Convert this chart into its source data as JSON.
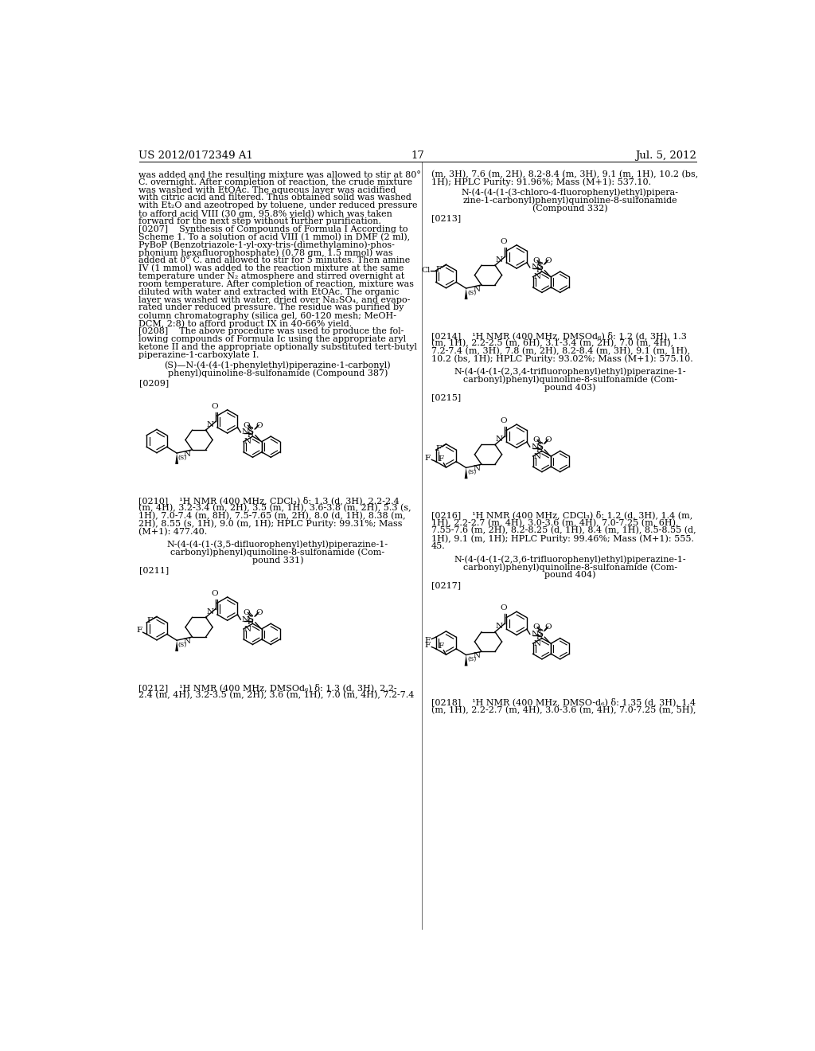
{
  "page_number": "17",
  "patent_number": "US 2012/0172349 A1",
  "date": "Jul. 5, 2012",
  "left_lines": [
    "was added and the resulting mixture was allowed to stir at 80°",
    "C. overnight. After completion of reaction, the crude mixture",
    "was washed with EtOAc. The aqueous layer was acidified",
    "with citric acid and filtered. Thus obtained solid was washed",
    "with Et₂O and azeotroped by toluene, under reduced pressure",
    "to afford acid VIII (30 gm, 95.8% yield) which was taken",
    "forward for the next step without further purification.",
    "[0207]    Synthesis of Compounds of Formula I According to",
    "Scheme 1. To a solution of acid VIII (1 mmol) in DMF (2 ml),",
    "PyBoP (Benzotriazole-1-yl-oxy-tris-(dimethylamino)-phos-",
    "phonium hexafluorophosphate) (0.78 gm, 1.5 mmol) was",
    "added at 0° C. and allowed to stir for 5 minutes. Then amine",
    "IV (1 mmol) was added to the reaction mixture at the same",
    "temperature under N₂ atmosphere and stirred overnight at",
    "room temperature. After completion of reaction, mixture was",
    "diluted with water and extracted with EtOAc. The organic",
    "layer was washed with water, dried over Na₂SO₄, and evapo-",
    "rated under reduced pressure. The residue was purified by",
    "column chromatography (silica gel, 60-120 mesh; MeOH-",
    "DCM, 2:8) to afford product IX in 40-66% yield.",
    "[0208]    The above procedure was used to produce the fol-",
    "lowing compounds of Formula Ic using the appropriate aryl",
    "ketone II and the appropriate optionally substituted tert-butyl",
    "piperazine-1-carboxylate I."
  ],
  "right_lines_top": [
    "(m, 3H), 7.6 (m, 2H), 8.2-8.4 (m, 3H), 9.1 (m, 1H), 10.2 (bs,",
    "1H); HPLC Purity: 91.96%; Mass (M+1): 537.10."
  ],
  "c387_title": [
    "(S)—N-(4-(4-(1-phenylethyl)piperazine-1-carbonyl)",
    "phenyl)quinoline-8-sulfonamide (Compound 387)"
  ],
  "c332_title": [
    "N-(4-(4-(1-(3-chloro-4-fluorophenyl)ethyl)pipera-",
    "zine-1-carbonyl)phenyl)quinoline-8-sulfonamide",
    "(Compound 332)"
  ],
  "c331_title": [
    "N-(4-(4-(1-(3,5-difluorophenyl)ethyl)piperazine-1-",
    "carbonyl)phenyl)quinoline-8-sulfonamide (Com-",
    "pound 331)"
  ],
  "c403_title": [
    "N-(4-(4-(1-(2,3,4-trifluorophenyl)ethyl)piperazine-1-",
    "carbonyl)phenyl)quinoline-8-sulfonamide (Com-",
    "pound 403)"
  ],
  "c404_title": [
    "N-(4-(4-(1-(2,3,6-trifluorophenyl)ethyl)piperazine-1-",
    "carbonyl)phenyl)quinoline-8-sulfonamide (Com-",
    "pound 404)"
  ],
  "nmr210": [
    "[0210]    ¹H NMR (400 MHz, CDCl₃) δ: 1.3 (d, 3H), 2.2-2.4",
    "(m, 4H), 3.2-3.4 (m, 2H), 3.5 (m, 1H), 3.6-3.8 (m, 2H), 5.3 (s,",
    "1H), 7.0-7.4 (m, 8H), 7.5-7.65 (m, 2H), 8.0 (d, 1H), 8.38 (m,",
    "2H), 8.55 (s, 1H), 9.0 (m, 1H); HPLC Purity: 99.31%; Mass",
    "(M+1): 477.40."
  ],
  "nmr212": [
    "[0212]    ¹H NMR (400 MHz, DMSOd₆) δ: 1.3 (d, 3H), 2.2-",
    "2.4 (m, 4H), 3.2-3.5 (m, 2H), 3.6 (m, 1H), 7.0 (m, 4H), 7.2-7.4"
  ],
  "nmr214": [
    "[0214]    ¹H NMR (400 MHz, DMSOd₆) δ: 1.2 (d, 3H), 1.3",
    "(m, 1H), 2.2-2.5 (m, 6H), 3.1-3.4 (m, 2H), 7.0 (m, 4H),",
    "7.2-7.4 (m, 3H), 7.8 (m, 2H), 8.2-8.4 (m, 3H), 9.1 (m, 1H),",
    "10.2 (bs, 1H); HPLC Purity: 93.02%; Mass (M+1): 575.10."
  ],
  "nmr216": [
    "[0216]    ¹H NMR (400 MHz, CDCl₃) δ: 1.2 (d, 3H), 1.4 (m,",
    "1H), 2.2-2.7 (m, 4H), 3.0-3.6 (m, 4H), 7.0-7.25 (m, 6H),",
    "7.55-7.6 (m, 2H), 8.2-8.25 (d, 1H), 8.4 (m, 1H), 8.5-8.55 (d,",
    "1H), 9.1 (m, 1H); HPLC Purity: 99.46%; Mass (M+1): 555.",
    "45."
  ],
  "nmr218": [
    "[0218]    ¹H NMR (400 MHz, DMSO-d₆) δ: 1.35 (d, 3H), 1.4",
    "(m, 1H), 2.2-2.7 (m, 4H), 3.0-3.6 (m, 4H), 7.0-7.25 (m, 5H),"
  ]
}
